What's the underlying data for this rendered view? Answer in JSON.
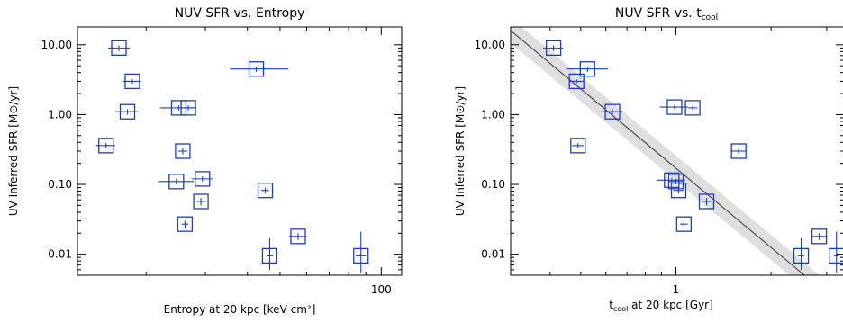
{
  "chart_data": [
    {
      "type": "scatter",
      "title": "NUV SFR vs. Entropy",
      "xlabel": "Entropy at 20 kpc [keV cm²]",
      "ylabel": "UV Inferred SFR [M⊙/yr]",
      "xscale": "log",
      "yscale": "log",
      "xlim": [
        12.5,
        115
      ],
      "ylim": [
        0.005,
        18
      ],
      "xticks": [
        {
          "value": 100,
          "label": "100"
        }
      ],
      "yticks": [
        {
          "value": 10,
          "label": "10.00"
        },
        {
          "value": 1,
          "label": "1.00"
        },
        {
          "value": 0.1,
          "label": "0.10"
        },
        {
          "value": 0.01,
          "label": "0.01"
        }
      ],
      "points": [
        {
          "x": 16.6,
          "y": 9.0,
          "xerr": [
            15.4,
            17.9
          ],
          "yerr": [
            8.1,
            9.8
          ]
        },
        {
          "x": 18.2,
          "y": 3.0,
          "xerr": [
            17.1,
            19.3
          ],
          "yerr": [
            2.8,
            3.2
          ]
        },
        {
          "x": 17.6,
          "y": 1.1,
          "xerr": [
            16.2,
            19.0
          ],
          "yerr": [
            1.0,
            1.2
          ]
        },
        {
          "x": 15.2,
          "y": 0.36,
          "xerr": [
            14.2,
            16.2
          ],
          "yerr": [
            0.33,
            0.39
          ]
        },
        {
          "x": 25.0,
          "y": 1.25,
          "xerr": [
            22.0,
            28.0
          ],
          "yerr": [
            1.15,
            1.35
          ]
        },
        {
          "x": 26.7,
          "y": 1.25,
          "xerr": [
            25.5,
            27.9
          ],
          "yerr": [
            1.15,
            1.35
          ]
        },
        {
          "x": 25.7,
          "y": 0.3,
          "xerr": [
            24.9,
            26.5
          ],
          "yerr": [
            0.27,
            0.33
          ]
        },
        {
          "x": 24.6,
          "y": 0.11,
          "xerr": [
            21.7,
            27.7
          ],
          "yerr": [
            0.1,
            0.12
          ]
        },
        {
          "x": 29.4,
          "y": 0.12,
          "xerr": [
            27.3,
            31.5
          ],
          "yerr": [
            0.11,
            0.13
          ]
        },
        {
          "x": 29.1,
          "y": 0.057,
          "xerr": [
            28.3,
            30.0
          ],
          "yerr": [
            0.05,
            0.064
          ]
        },
        {
          "x": 26.1,
          "y": 0.027,
          "xerr": [
            25.5,
            26.7
          ],
          "yerr": [
            0.024,
            0.03
          ]
        },
        {
          "x": 42.5,
          "y": 4.5,
          "xerr": [
            35.5,
            53.0
          ],
          "yerr": [
            4.1,
            4.9
          ]
        },
        {
          "x": 45.2,
          "y": 0.082,
          "xerr": [
            44.0,
            46.4
          ],
          "yerr": [
            0.074,
            0.09
          ]
        },
        {
          "x": 46.6,
          "y": 0.0095,
          "xerr": [
            45.6,
            47.6
          ],
          "yerr": [
            0.006,
            0.017
          ]
        },
        {
          "x": 56.6,
          "y": 0.018,
          "xerr": [
            53.2,
            60.0
          ],
          "yerr": [
            0.016,
            0.02
          ]
        },
        {
          "x": 87.0,
          "y": 0.0095,
          "xerr": [
            84.0,
            90.0
          ],
          "yerr": [
            0.0055,
            0.021
          ]
        }
      ]
    },
    {
      "type": "scatter",
      "title": "NUV SFR vs. t",
      "title_sub": "cool",
      "xlabel_sym": "t",
      "xlabel_sub": "cool",
      "xlabel_rest": " at 20 kpc [Gyr]",
      "ylabel": "UV Inferred SFR [M⊙/yr]",
      "xscale": "log",
      "yscale": "log",
      "xlim": [
        0.3,
        3.4
      ],
      "ylim": [
        0.005,
        18
      ],
      "xticks": [
        {
          "value": 1,
          "label": "1"
        }
      ],
      "yticks": [
        {
          "value": 10,
          "label": "10.00"
        },
        {
          "value": 1,
          "label": "1.00"
        },
        {
          "value": 0.1,
          "label": "0.10"
        },
        {
          "value": 0.01,
          "label": "0.01"
        }
      ],
      "fit": {
        "x": [
          0.3,
          2.55
        ],
        "y": [
          16,
          0.005
        ],
        "band_halfwidth_dex": 0.18
      },
      "points": [
        {
          "x": 0.41,
          "y": 9.0,
          "xerr": [
            0.38,
            0.44
          ],
          "yerr": [
            8.1,
            9.8
          ]
        },
        {
          "x": 0.525,
          "y": 4.5,
          "xerr": [
            0.45,
            0.61
          ],
          "yerr": [
            4.1,
            4.9
          ]
        },
        {
          "x": 0.485,
          "y": 3.0,
          "xerr": [
            0.46,
            0.51
          ],
          "yerr": [
            2.8,
            3.2
          ]
        },
        {
          "x": 0.63,
          "y": 1.1,
          "xerr": [
            0.58,
            0.68
          ],
          "yerr": [
            1.0,
            1.2
          ]
        },
        {
          "x": 0.49,
          "y": 0.36,
          "xerr": [
            0.47,
            0.51
          ],
          "yerr": [
            0.33,
            0.39
          ]
        },
        {
          "x": 0.99,
          "y": 1.28,
          "xerr": [
            0.89,
            1.09
          ],
          "yerr": [
            1.18,
            1.38
          ]
        },
        {
          "x": 1.13,
          "y": 1.25,
          "xerr": [
            1.09,
            1.17
          ],
          "yerr": [
            1.15,
            1.35
          ]
        },
        {
          "x": 1.58,
          "y": 0.3,
          "xerr": [
            1.5,
            1.66
          ],
          "yerr": [
            0.27,
            0.33
          ]
        },
        {
          "x": 0.97,
          "y": 0.115,
          "xerr": [
            0.87,
            1.07
          ],
          "yerr": [
            0.105,
            0.125
          ]
        },
        {
          "x": 1.0,
          "y": 0.11,
          "xerr": [
            0.95,
            1.05
          ],
          "yerr": [
            0.1,
            0.12
          ]
        },
        {
          "x": 1.02,
          "y": 0.082,
          "xerr": [
            0.98,
            1.06
          ],
          "yerr": [
            0.074,
            0.09
          ]
        },
        {
          "x": 1.25,
          "y": 0.057,
          "xerr": [
            1.21,
            1.29
          ],
          "yerr": [
            0.05,
            0.064
          ]
        },
        {
          "x": 1.06,
          "y": 0.027,
          "xerr": [
            1.03,
            1.09
          ],
          "yerr": [
            0.024,
            0.03
          ]
        },
        {
          "x": 2.49,
          "y": 0.0095,
          "xerr": [
            2.43,
            2.55
          ],
          "yerr": [
            0.006,
            0.017
          ]
        },
        {
          "x": 2.84,
          "y": 0.018,
          "xerr": [
            2.69,
            2.99
          ],
          "yerr": [
            0.016,
            0.02
          ]
        },
        {
          "x": 3.22,
          "y": 0.0095,
          "xerr": [
            3.16,
            3.28
          ],
          "yerr": [
            0.0055,
            0.021
          ]
        }
      ]
    }
  ]
}
